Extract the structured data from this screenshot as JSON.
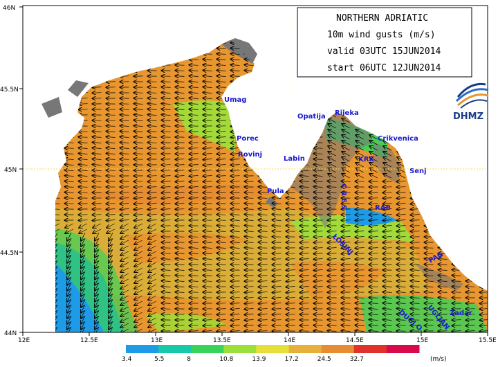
{
  "info_box": {
    "line1": "NORTHERN ADRIATIC",
    "line2": "10m wind gusts (m/s)",
    "line3": "valid 03UTC 15JUN2014",
    "line4": "start 06UTC 12JUN2014"
  },
  "logo": {
    "text": "DHMZ",
    "icon": "dhmz-swirl-logo-icon"
  },
  "axes": {
    "lon_labels": [
      "12E",
      "12.5E",
      "13E",
      "13.5E",
      "14E",
      "14.5E",
      "15E",
      "15.5E"
    ],
    "lat_labels": [
      "46N",
      "45.5N",
      "45N",
      "44.5N",
      "44N"
    ]
  },
  "places": [
    {
      "id": "umag",
      "name": "Umag"
    },
    {
      "id": "porec",
      "name": "Porec"
    },
    {
      "id": "rovinj",
      "name": "Rovinj"
    },
    {
      "id": "pula",
      "name": "Pula"
    },
    {
      "id": "labin",
      "name": "Labin"
    },
    {
      "id": "opatija",
      "name": "Opatija"
    },
    {
      "id": "rijeka",
      "name": "Rijeka"
    },
    {
      "id": "crikvenica",
      "name": "Crikvenica"
    },
    {
      "id": "krk",
      "name": "KRK"
    },
    {
      "id": "senj",
      "name": "Senj"
    },
    {
      "id": "cres",
      "name": "CRES"
    },
    {
      "id": "rab",
      "name": "RAB"
    },
    {
      "id": "losinj",
      "name": "LOSINJ"
    },
    {
      "id": "pag",
      "name": "PAG"
    },
    {
      "id": "zadar",
      "name": "Zadar"
    },
    {
      "id": "ugljan",
      "name": "UGLJAN"
    },
    {
      "id": "dugi_o",
      "name": "DUGI O."
    }
  ],
  "colorbar": {
    "labels": [
      "3.4",
      "5.5",
      "8",
      "10.8",
      "13.9",
      "17.2",
      "24.5",
      "32.7"
    ],
    "unit": "(m/s)",
    "colors": [
      "#1e9be6",
      "#18c8a8",
      "#37d35a",
      "#9be03a",
      "#e6df3a",
      "#e6b13a",
      "#e68c32",
      "#e0322a",
      "#d80a4a"
    ]
  },
  "colors": {
    "sea_dominant": "#e8962f",
    "sea_yellow": "#d6b23a",
    "land": "#777777",
    "reference_line": "#ffd84a",
    "city_label": "#1a1ad0",
    "arrows": "#000000"
  }
}
